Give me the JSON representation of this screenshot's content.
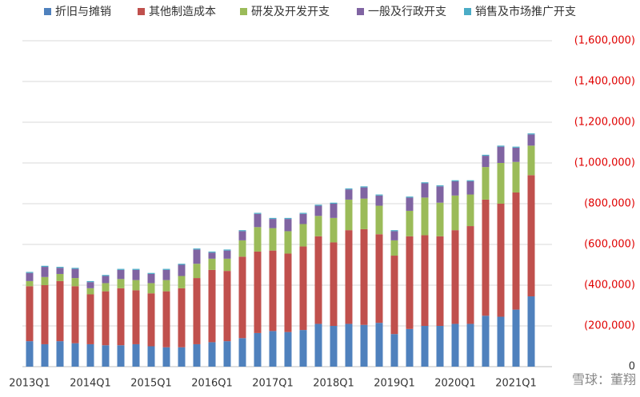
{
  "chart_data": {
    "type": "stacked_bar",
    "categories": [
      "2013Q1",
      null,
      null,
      null,
      "2014Q1",
      null,
      null,
      null,
      "2015Q1",
      null,
      null,
      null,
      "2016Q1",
      null,
      null,
      null,
      "2017Q1",
      null,
      null,
      null,
      "2018Q1",
      null,
      null,
      null,
      "2019Q1",
      null,
      null,
      null,
      "2020Q1",
      null,
      null,
      null,
      "2021Q1",
      null
    ],
    "series": [
      {
        "name": "折旧与摊销",
        "color": "#4f81bd",
        "values": [
          125000,
          110000,
          125000,
          115000,
          110000,
          105000,
          105000,
          110000,
          100000,
          95000,
          95000,
          110000,
          120000,
          125000,
          140000,
          165000,
          175000,
          170000,
          180000,
          210000,
          200000,
          210000,
          205000,
          215000,
          160000,
          185000,
          200000,
          200000,
          210000,
          210000,
          250000,
          245000,
          280000,
          345000
        ]
      },
      {
        "name": "其他制造成本",
        "color": "#c0504d",
        "values": [
          270000,
          290000,
          295000,
          280000,
          245000,
          265000,
          280000,
          265000,
          260000,
          275000,
          290000,
          325000,
          355000,
          345000,
          400000,
          400000,
          395000,
          385000,
          410000,
          430000,
          410000,
          460000,
          470000,
          435000,
          385000,
          455000,
          445000,
          440000,
          460000,
          480000,
          570000,
          555000,
          575000,
          595000
        ]
      },
      {
        "name": "研发及开发开支",
        "color": "#9bbb59",
        "values": [
          25000,
          40000,
          35000,
          40000,
          30000,
          40000,
          45000,
          50000,
          50000,
          55000,
          60000,
          70000,
          55000,
          60000,
          80000,
          120000,
          110000,
          110000,
          110000,
          100000,
          120000,
          150000,
          150000,
          140000,
          75000,
          125000,
          185000,
          165000,
          170000,
          155000,
          160000,
          200000,
          150000,
          145000
        ]
      },
      {
        "name": "一般及行政开支",
        "color": "#8064a2",
        "values": [
          40000,
          50000,
          30000,
          45000,
          30000,
          35000,
          45000,
          50000,
          45000,
          50000,
          55000,
          70000,
          30000,
          40000,
          45000,
          65000,
          45000,
          60000,
          50000,
          50000,
          70000,
          50000,
          55000,
          50000,
          45000,
          65000,
          70000,
          80000,
          70000,
          65000,
          55000,
          80000,
          70000,
          55000
        ]
      },
      {
        "name": "销售及市场推广开支",
        "color": "#4bacc6",
        "values": [
          5000,
          5000,
          5000,
          5000,
          5000,
          5000,
          5000,
          5000,
          5000,
          5000,
          5000,
          5000,
          5000,
          5000,
          5000,
          5000,
          5000,
          5000,
          5000,
          5000,
          5000,
          5000,
          5000,
          5000,
          5000,
          5000,
          5000,
          5000,
          5000,
          5000,
          5000,
          5000,
          5000,
          5000
        ]
      }
    ],
    "ylim": [
      0,
      1600000
    ],
    "yticks": [
      0,
      {
        "value": 200000,
        "label": "(200,000)"
      },
      {
        "value": 400000,
        "label": "(400,000)"
      },
      {
        "value": 600000,
        "label": "(600,000)"
      },
      {
        "value": 800000,
        "label": "(800,000)"
      },
      {
        "value": 1000000,
        "label": "(1,000,000)"
      },
      {
        "value": 1200000,
        "label": "(1,200,000)"
      },
      {
        "value": 1400000,
        "label": "(1,400,000)"
      },
      {
        "value": 1600000,
        "label": "(1,600,000)"
      }
    ],
    "ytick_label_color": "#e00000",
    "grid": true,
    "legend": "top",
    "watermark": "雪球：董翔"
  }
}
